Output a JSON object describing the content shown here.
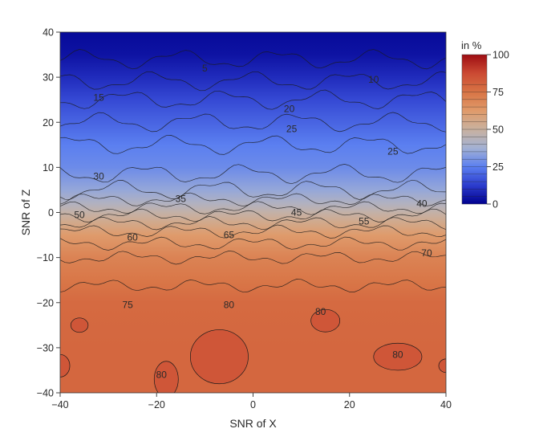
{
  "chart_data": {
    "type": "contour",
    "title": "",
    "xlabel": "SNR of X",
    "ylabel": "SNR of Z",
    "xlim": [
      -40,
      40
    ],
    "ylim": [
      -40,
      40
    ],
    "x_ticks": [
      "−40",
      "−20",
      "0",
      "20",
      "40"
    ],
    "y_ticks": [
      "40",
      "30",
      "20",
      "10",
      "0",
      "−10",
      "−20",
      "−30",
      "−40"
    ],
    "x_tick_values": [
      -40,
      -20,
      0,
      20,
      40
    ],
    "y_tick_values": [
      40,
      30,
      20,
      10,
      0,
      -10,
      -20,
      -30,
      -40
    ],
    "colorbar": {
      "title": "in %",
      "ticks": [
        "0",
        "25",
        "50",
        "75",
        "100"
      ],
      "tick_values": [
        0,
        25,
        50,
        75,
        100
      ],
      "range": [
        0,
        100
      ],
      "colors": [
        "#00008f",
        "#2c3ccd",
        "#5b7ff0",
        "#a3b1d3",
        "#c9b19f",
        "#e09a6a",
        "#d87445",
        "#cb4a33",
        "#9e0d12"
      ]
    },
    "contour_levels": [
      5,
      10,
      15,
      20,
      25,
      30,
      35,
      40,
      45,
      50,
      55,
      60,
      65,
      70,
      75,
      80
    ],
    "contour_labels": [
      {
        "text": "5",
        "x": -10,
        "y": 32
      },
      {
        "text": "10",
        "x": 25,
        "y": 29.5
      },
      {
        "text": "15",
        "x": -32,
        "y": 25.5
      },
      {
        "text": "20",
        "x": 7.5,
        "y": 23
      },
      {
        "text": "25",
        "x": 8,
        "y": 18.5
      },
      {
        "text": "25",
        "x": 29,
        "y": 13.5
      },
      {
        "text": "30",
        "x": -32,
        "y": 8
      },
      {
        "text": "35",
        "x": -15,
        "y": 3
      },
      {
        "text": "40",
        "x": 35,
        "y": 2
      },
      {
        "text": "45",
        "x": 9,
        "y": 0
      },
      {
        "text": "50",
        "x": -36,
        "y": -0.5
      },
      {
        "text": "55",
        "x": 23,
        "y": -2
      },
      {
        "text": "60",
        "x": -25,
        "y": -5.5
      },
      {
        "text": "65",
        "x": -5,
        "y": -5
      },
      {
        "text": "70",
        "x": 36,
        "y": -9
      },
      {
        "text": "75",
        "x": -26,
        "y": -20.5
      },
      {
        "text": "80",
        "x": -5,
        "y": -20.5
      },
      {
        "text": "80",
        "x": 14,
        "y": -22
      },
      {
        "text": "80",
        "x": 30,
        "y": -31.5
      },
      {
        "text": "80",
        "x": -19,
        "y": -36
      }
    ],
    "approx_field_by_z": [
      {
        "z": 40,
        "value": 2
      },
      {
        "z": 35,
        "value": 4
      },
      {
        "z": 30,
        "value": 9
      },
      {
        "z": 25,
        "value": 15
      },
      {
        "z": 20,
        "value": 20
      },
      {
        "z": 15,
        "value": 25
      },
      {
        "z": 10,
        "value": 28
      },
      {
        "z": 5,
        "value": 35
      },
      {
        "z": 2,
        "value": 42
      },
      {
        "z": 0,
        "value": 48
      },
      {
        "z": -2,
        "value": 54
      },
      {
        "z": -5,
        "value": 62
      },
      {
        "z": -10,
        "value": 70
      },
      {
        "z": -15,
        "value": 74
      },
      {
        "z": -20,
        "value": 78
      },
      {
        "z": -30,
        "value": 79
      },
      {
        "z": -40,
        "value": 79
      }
    ]
  }
}
